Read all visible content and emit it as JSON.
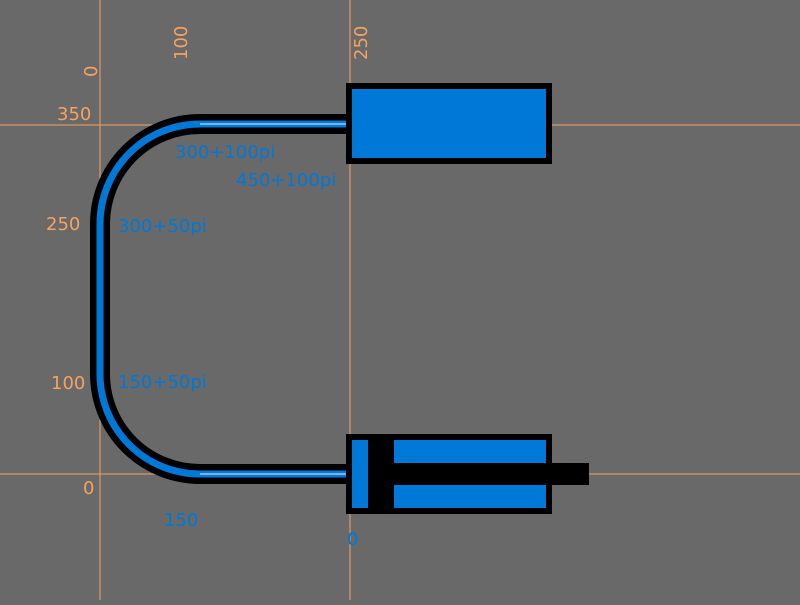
{
  "colors": {
    "background": "#696969",
    "guide": "#f4a460",
    "fluid": "#0078d7",
    "outline": "#000000"
  },
  "axis_labels": {
    "x_0": "0",
    "x_100": "100",
    "x_250": "250",
    "y_350": "350",
    "y_250": "250",
    "y_100": "100",
    "y_0": "0"
  },
  "path_labels": {
    "bottom_straight": "150",
    "lower_left": "150+50pi",
    "upper_left": "300+50pi",
    "top_arc_end": "300+100pi",
    "top_straight_end": "450+100pi",
    "start": "0"
  }
}
